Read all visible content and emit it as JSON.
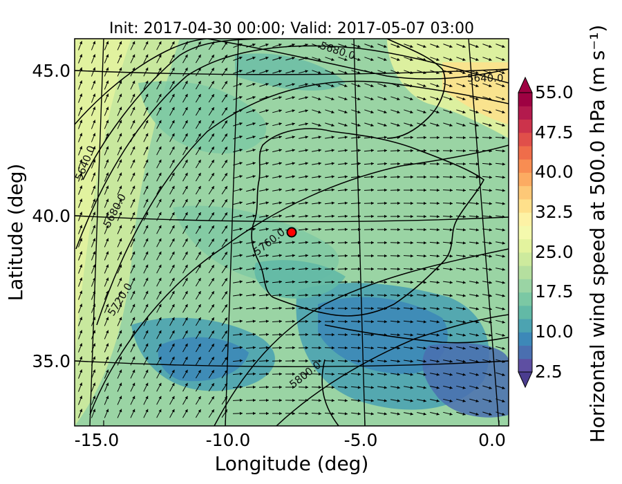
{
  "title": "Init: 2017-04-30 00:00; Valid: 2017-05-07 03:00",
  "xlabel": "Longitude (deg)",
  "ylabel": "Latitude (deg)",
  "x_ticks": [
    "-15.0",
    "-10.0",
    "-5.0",
    "0.0"
  ],
  "y_ticks": [
    "45.0",
    "40.0",
    "35.0"
  ],
  "colorbar": {
    "label": "Horizontal wind speed at 500.0 hPa (m s⁻¹)",
    "tick_labels": [
      "55.0",
      "47.5",
      "40.0",
      "32.5",
      "25.0",
      "17.5",
      "10.0",
      "2.5"
    ],
    "levels": [
      2.5,
      5,
      7.5,
      10,
      12.5,
      15,
      17.5,
      20,
      22.5,
      25,
      27.5,
      30,
      32.5,
      35,
      37.5,
      40,
      42.5,
      45,
      47.5,
      50,
      52.5,
      55
    ],
    "colors": [
      "#5e4fa2",
      "#4a6fb0",
      "#3d88b8",
      "#4ca3b1",
      "#62b9a6",
      "#7bc8a4",
      "#9ad4a4",
      "#b5df9f",
      "#cdea9d",
      "#e3f39e",
      "#f4f9ad",
      "#fdf2a5",
      "#fee08b",
      "#fdc877",
      "#fcab62",
      "#f88d52",
      "#ef6d4a",
      "#e04f4a",
      "#cc334b",
      "#b31a4d",
      "#9e0142"
    ]
  },
  "contour_labels": [
    "5680.0",
    "5640.0",
    "5640.0",
    "5680.0",
    "5720.0",
    "5760.0",
    "5800.0"
  ],
  "marker": {
    "lon": -7.5,
    "lat": 39.4,
    "color": "#ff0000"
  }
}
